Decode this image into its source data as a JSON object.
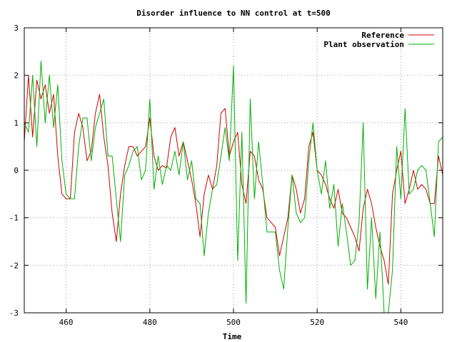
{
  "chart_data": {
    "type": "line",
    "title": "Disorder influence to NN control at t=500",
    "xlabel": "Time",
    "ylabel": "",
    "xlim": [
      450,
      550
    ],
    "ylim": [
      -3,
      3
    ],
    "x_ticks": [
      460,
      480,
      500,
      520,
      540
    ],
    "y_ticks": [
      -3,
      -2,
      -1,
      0,
      1,
      2,
      3
    ],
    "grid": true,
    "legend_position": "top-right",
    "x": [
      450,
      451,
      452,
      453,
      454,
      455,
      456,
      457,
      458,
      459,
      460,
      461,
      462,
      463,
      464,
      465,
      466,
      467,
      468,
      469,
      470,
      471,
      472,
      473,
      474,
      475,
      476,
      477,
      478,
      479,
      480,
      481,
      482,
      483,
      484,
      485,
      486,
      487,
      488,
      489,
      490,
      491,
      492,
      493,
      494,
      495,
      496,
      497,
      498,
      499,
      500,
      501,
      502,
      503,
      504,
      505,
      506,
      507,
      508,
      509,
      510,
      511,
      512,
      513,
      514,
      515,
      516,
      517,
      518,
      519,
      520,
      521,
      522,
      523,
      524,
      525,
      526,
      527,
      528,
      529,
      530,
      531,
      532,
      533,
      534,
      535,
      536,
      537,
      538,
      539,
      540,
      541,
      542,
      543,
      544,
      545,
      546,
      547,
      548,
      549,
      550
    ],
    "series": [
      {
        "name": "Reference",
        "color": "#d00000",
        "values": [
          0.6,
          2.0,
          0.7,
          1.9,
          1.5,
          1.8,
          1.2,
          1.6,
          0.3,
          -0.5,
          -0.6,
          -0.6,
          0.8,
          1.2,
          0.9,
          0.2,
          0.4,
          1.2,
          1.6,
          0.7,
          0.1,
          -0.9,
          -1.5,
          -0.5,
          0.1,
          0.5,
          0.5,
          0.3,
          0.4,
          0.5,
          1.1,
          0.3,
          0.0,
          0.1,
          0.05,
          0.7,
          0.9,
          0.3,
          0.6,
          0.2,
          -0.2,
          -0.7,
          -1.4,
          -0.5,
          -0.1,
          -0.4,
          0.1,
          1.2,
          1.3,
          0.3,
          0.6,
          0.8,
          -0.3,
          -0.7,
          0.4,
          0.3,
          -0.2,
          -0.4,
          -1.0,
          -1.1,
          -1.2,
          -1.8,
          -1.4,
          -1.0,
          -0.1,
          -0.4,
          -0.9,
          -0.6,
          0.5,
          0.8,
          0.0,
          -0.1,
          -0.3,
          -0.6,
          -0.8,
          -0.4,
          -0.9,
          -1.0,
          -1.2,
          -1.4,
          -1.7,
          -0.8,
          -0.4,
          -0.7,
          -1.2,
          -1.6,
          -1.9,
          -2.4,
          -0.5,
          0.0,
          0.4,
          -0.7,
          -0.4,
          0.0,
          -0.4,
          -0.3,
          -0.4,
          -0.7,
          -0.7,
          0.3,
          -0.1
        ]
      },
      {
        "name": "Plant observation",
        "color": "#00b000",
        "values": [
          1.0,
          0.8,
          2.0,
          0.5,
          2.3,
          1.0,
          2.0,
          0.9,
          1.8,
          0.2,
          -0.5,
          -0.6,
          -0.6,
          0.5,
          1.1,
          1.1,
          0.2,
          0.9,
          1.2,
          1.5,
          0.3,
          0.3,
          -0.6,
          -1.5,
          -0.1,
          0.1,
          0.4,
          0.5,
          -0.2,
          0.0,
          1.5,
          -0.4,
          0.3,
          -0.3,
          0.1,
          0.0,
          0.4,
          -0.1,
          0.6,
          -0.2,
          0.2,
          -0.6,
          -0.7,
          -1.8,
          -0.9,
          -0.4,
          -0.3,
          0.3,
          0.9,
          0.2,
          2.2,
          -1.9,
          0.8,
          -2.8,
          1.5,
          -0.6,
          0.6,
          -0.3,
          -1.3,
          -1.3,
          -1.3,
          -2.1,
          -2.5,
          -1.2,
          -0.1,
          -0.9,
          -1.1,
          -1.0,
          0.2,
          1.0,
          0.0,
          -0.5,
          0.2,
          -0.8,
          -0.3,
          -1.6,
          -0.7,
          -1.3,
          -2.0,
          -1.9,
          -1.1,
          1.0,
          -2.5,
          -1.0,
          -2.7,
          -1.3,
          -3.0,
          -3.0,
          -2.1,
          0.5,
          -0.6,
          1.3,
          -0.5,
          -0.4,
          0.0,
          0.1,
          0.0,
          -0.7,
          -1.4,
          0.6,
          0.7
        ]
      }
    ]
  }
}
